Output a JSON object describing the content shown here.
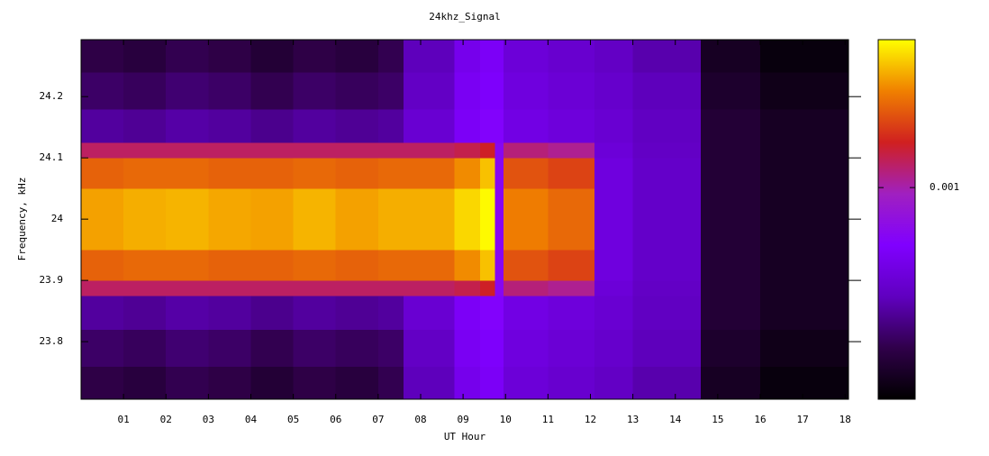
{
  "chart_data": {
    "type": "heatmap",
    "title": "24khz_Signal",
    "x_label": "UT Hour",
    "y_label": "Frequency, kHz",
    "xlim": [
      0,
      18.08
    ],
    "ylim": [
      23.706,
      24.293
    ],
    "xticks": [
      {
        "value": 1,
        "label": "01"
      },
      {
        "value": 2,
        "label": "02"
      },
      {
        "value": 3,
        "label": "03"
      },
      {
        "value": 4,
        "label": "04"
      },
      {
        "value": 5,
        "label": "05"
      },
      {
        "value": 6,
        "label": "06"
      },
      {
        "value": 7,
        "label": "07"
      },
      {
        "value": 8,
        "label": "08"
      },
      {
        "value": 9,
        "label": "09"
      },
      {
        "value": 10,
        "label": "10"
      },
      {
        "value": 11,
        "label": "11"
      },
      {
        "value": 12,
        "label": "12"
      },
      {
        "value": 13,
        "label": "13"
      },
      {
        "value": 14,
        "label": "14"
      },
      {
        "value": 15,
        "label": "15"
      },
      {
        "value": 16,
        "label": "16"
      },
      {
        "value": 17,
        "label": "17"
      },
      {
        "value": 18,
        "label": "18"
      }
    ],
    "yticks": [
      23.8,
      23.9,
      24,
      24.1,
      24.2
    ],
    "x_bins": [
      0,
      1,
      2,
      3,
      4,
      5,
      6,
      7,
      7.6,
      8.8,
      9.4,
      9.75,
      9.95,
      11,
      12.1,
      13,
      14.6,
      16,
      18.08
    ],
    "y_bins": [
      23.706,
      23.76,
      23.82,
      23.875,
      23.9,
      23.95,
      24.05,
      24.1,
      24.125,
      24.18,
      24.24,
      24.293
    ],
    "z": [
      [
        0.00017,
        0.00016,
        0.00018,
        0.00017,
        0.00015,
        0.00017,
        0.00016,
        0.00018,
        0.0003,
        0.00045,
        0.0005,
        0.0005,
        0.00038,
        0.00035,
        0.00032,
        0.00028,
        0.00013,
        0.00011
      ],
      [
        0.0002,
        0.00019,
        0.00021,
        0.0002,
        0.00018,
        0.0002,
        0.00019,
        0.0002,
        0.00032,
        0.00048,
        0.00052,
        0.00052,
        0.0004,
        0.00037,
        0.00034,
        0.0003,
        0.00014,
        0.00012
      ],
      [
        0.00026,
        0.00025,
        0.00027,
        0.00026,
        0.00024,
        0.00026,
        0.00025,
        0.00026,
        0.00036,
        0.0005,
        0.00055,
        0.00055,
        0.00042,
        0.00039,
        0.00036,
        0.00031,
        0.00015,
        0.00013
      ],
      [
        0.0013,
        0.0013,
        0.0013,
        0.0013,
        0.0013,
        0.0013,
        0.0013,
        0.0013,
        0.0013,
        0.0014,
        0.0016,
        0.0006,
        0.0012,
        0.0011,
        0.00038,
        0.00032,
        0.00015,
        0.00013
      ],
      [
        0.0024,
        0.0025,
        0.0025,
        0.0024,
        0.0024,
        0.0025,
        0.0024,
        0.0025,
        0.0025,
        0.003,
        0.0038,
        0.0006,
        0.0022,
        0.002,
        0.0004,
        0.00033,
        0.00015,
        0.00013
      ],
      [
        0.0033,
        0.0035,
        0.0036,
        0.0034,
        0.0033,
        0.0036,
        0.0033,
        0.0035,
        0.0035,
        0.0042,
        0.0049,
        0.0006,
        0.0028,
        0.0025,
        0.0004,
        0.00033,
        0.00015,
        0.00013
      ],
      [
        0.0024,
        0.0025,
        0.0025,
        0.0024,
        0.0024,
        0.0025,
        0.0024,
        0.0025,
        0.0025,
        0.003,
        0.0038,
        0.0006,
        0.0022,
        0.002,
        0.0004,
        0.00033,
        0.00015,
        0.00013
      ],
      [
        0.0013,
        0.0013,
        0.0013,
        0.0013,
        0.0013,
        0.0013,
        0.0013,
        0.0013,
        0.0013,
        0.0014,
        0.0016,
        0.0006,
        0.0012,
        0.0011,
        0.00038,
        0.00032,
        0.00015,
        0.00013
      ],
      [
        0.00026,
        0.00025,
        0.00027,
        0.00026,
        0.00024,
        0.00026,
        0.00025,
        0.00026,
        0.00036,
        0.0005,
        0.00055,
        0.00055,
        0.00042,
        0.00039,
        0.00036,
        0.00031,
        0.00015,
        0.00013
      ],
      [
        0.0002,
        0.00019,
        0.00021,
        0.0002,
        0.00018,
        0.0002,
        0.00019,
        0.0002,
        0.00032,
        0.00048,
        0.00052,
        0.00052,
        0.0004,
        0.00037,
        0.00034,
        0.0003,
        0.00014,
        0.00012
      ],
      [
        0.00017,
        0.00016,
        0.00018,
        0.00017,
        0.00015,
        0.00017,
        0.00016,
        0.00018,
        0.0003,
        0.00045,
        0.0005,
        0.0005,
        0.00038,
        0.00035,
        0.00032,
        0.00028,
        0.00013,
        0.00011
      ]
    ],
    "colormap": [
      "#000000",
      "#30004a",
      "#6000c0",
      "#8000ff",
      "#a020c0",
      "#d02020",
      "#f08000",
      "#ffff00"
    ],
    "colorbar": {
      "lim": [
        0.0001,
        0.005
      ],
      "log": true,
      "ticks": [
        {
          "value": 0.001,
          "label": "0.001"
        }
      ]
    }
  }
}
